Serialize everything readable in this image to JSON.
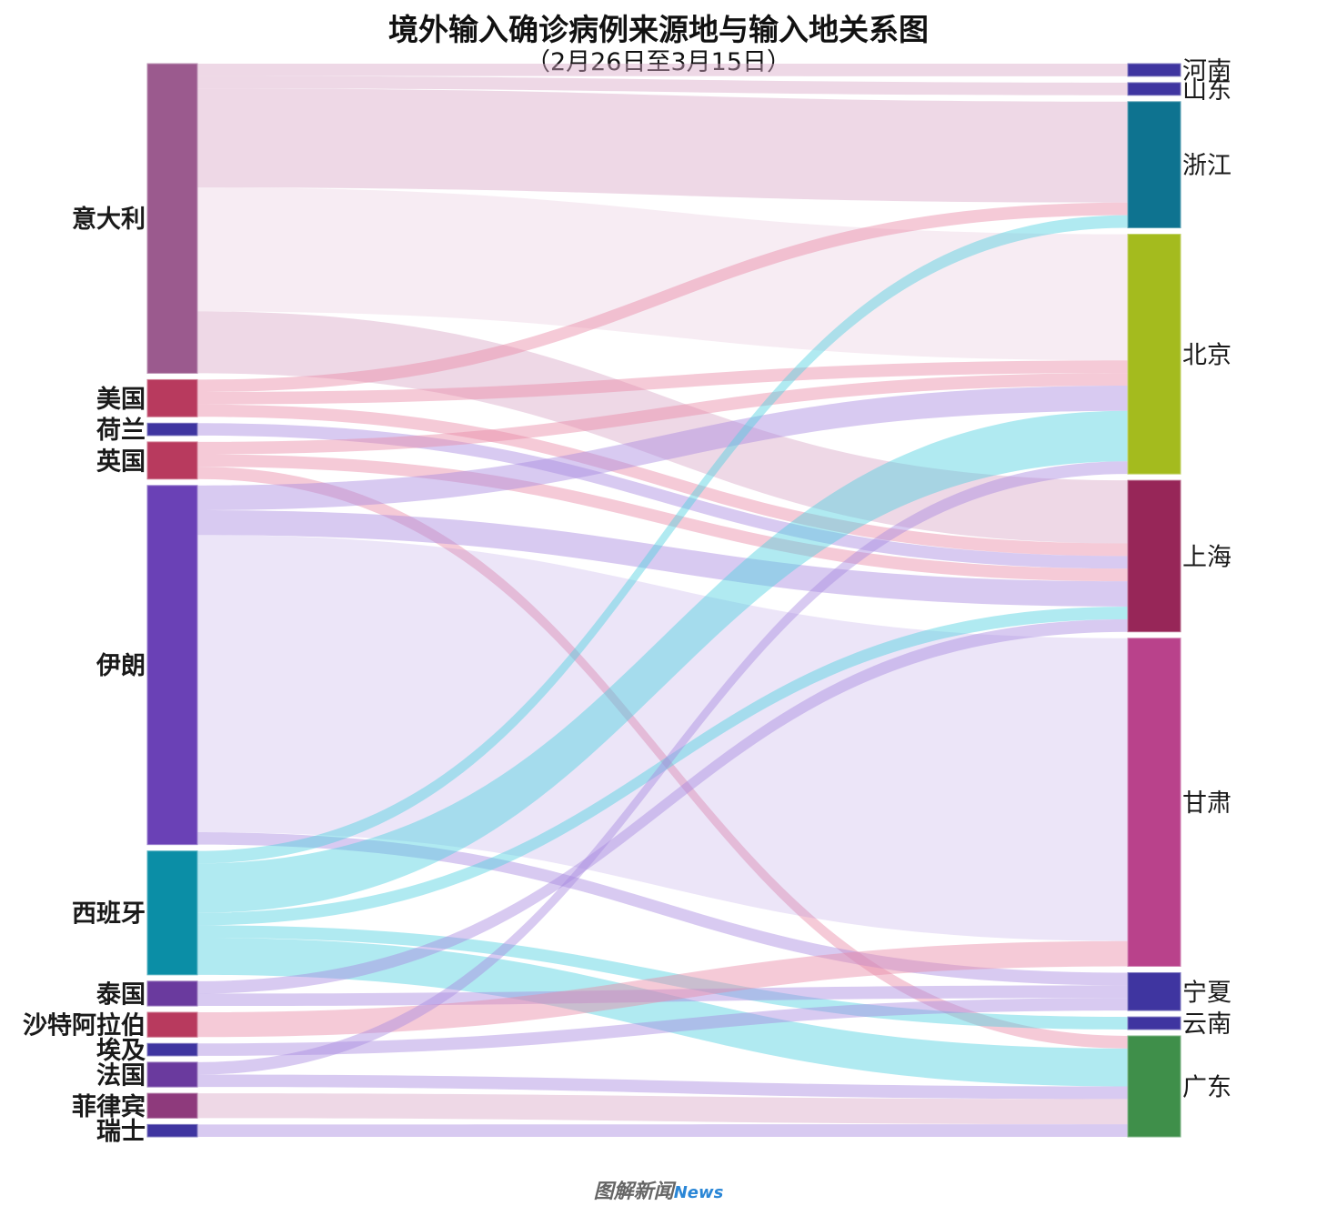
{
  "title": "境外输入确诊病例来源地与输入地关系图",
  "subtitle": "（2月26日至3月15日）",
  "watermark": {
    "cn": "图解新闻",
    "en": "News"
  },
  "chart_data": {
    "type": "sankey",
    "sources": [
      {
        "id": "italy",
        "label": "意大利",
        "color": "#9b5a8e"
      },
      {
        "id": "usa",
        "label": "美国",
        "color": "#b83a5e"
      },
      {
        "id": "netherlands",
        "label": "荷兰",
        "color": "#3f35a0"
      },
      {
        "id": "uk",
        "label": "英国",
        "color": "#b83a5e"
      },
      {
        "id": "iran",
        "label": "伊朗",
        "color": "#6a41b6"
      },
      {
        "id": "spain",
        "label": "西班牙",
        "color": "#0b8ea6"
      },
      {
        "id": "thailand",
        "label": "泰国",
        "color": "#6a3a9e"
      },
      {
        "id": "saudi",
        "label": "沙特阿拉伯",
        "color": "#b83a5e"
      },
      {
        "id": "egypt",
        "label": "埃及",
        "color": "#3f35a0"
      },
      {
        "id": "france",
        "label": "法国",
        "color": "#6a3a9e"
      },
      {
        "id": "philippines",
        "label": "菲律宾",
        "color": "#8e3a7c"
      },
      {
        "id": "switzerland",
        "label": "瑞士",
        "color": "#3f35a0"
      }
    ],
    "targets": [
      {
        "id": "henan",
        "label": "河南",
        "color": "#3f35a0"
      },
      {
        "id": "shandong",
        "label": "山东",
        "color": "#3f35a0"
      },
      {
        "id": "zhejiang",
        "label": "浙江",
        "color": "#0e7390"
      },
      {
        "id": "beijing",
        "label": "北京",
        "color": "#a4bb1e"
      },
      {
        "id": "shanghai",
        "label": "上海",
        "color": "#972658"
      },
      {
        "id": "gansu",
        "label": "甘肃",
        "color": "#b9428b"
      },
      {
        "id": "ningxia",
        "label": "宁夏",
        "color": "#3f35a0"
      },
      {
        "id": "yunnan",
        "label": "云南",
        "color": "#3f35a0"
      },
      {
        "id": "guangdong",
        "label": "广东",
        "color": "#3f8f4a"
      }
    ],
    "flows": [
      {
        "source": "italy",
        "target": "henan",
        "value": 1
      },
      {
        "source": "italy",
        "target": "shandong",
        "value": 1
      },
      {
        "source": "italy",
        "target": "zhejiang",
        "value": 8
      },
      {
        "source": "italy",
        "target": "beijing",
        "value": 10
      },
      {
        "source": "italy",
        "target": "shanghai",
        "value": 5
      },
      {
        "source": "usa",
        "target": "zhejiang",
        "value": 1
      },
      {
        "source": "usa",
        "target": "beijing",
        "value": 1
      },
      {
        "source": "usa",
        "target": "shanghai",
        "value": 1
      },
      {
        "source": "netherlands",
        "target": "shanghai",
        "value": 1
      },
      {
        "source": "uk",
        "target": "beijing",
        "value": 1
      },
      {
        "source": "uk",
        "target": "shanghai",
        "value": 1
      },
      {
        "source": "uk",
        "target": "guangdong",
        "value": 1
      },
      {
        "source": "iran",
        "target": "beijing",
        "value": 2
      },
      {
        "source": "iran",
        "target": "shanghai",
        "value": 2
      },
      {
        "source": "iran",
        "target": "gansu",
        "value": 24
      },
      {
        "source": "iran",
        "target": "ningxia",
        "value": 1
      },
      {
        "source": "spain",
        "target": "zhejiang",
        "value": 1
      },
      {
        "source": "spain",
        "target": "beijing",
        "value": 4
      },
      {
        "source": "spain",
        "target": "shanghai",
        "value": 1
      },
      {
        "source": "spain",
        "target": "yunnan",
        "value": 1
      },
      {
        "source": "spain",
        "target": "guangdong",
        "value": 3
      },
      {
        "source": "thailand",
        "target": "shanghai",
        "value": 1
      },
      {
        "source": "thailand",
        "target": "ningxia",
        "value": 1
      },
      {
        "source": "saudi",
        "target": "gansu",
        "value": 2
      },
      {
        "source": "egypt",
        "target": "ningxia",
        "value": 1
      },
      {
        "source": "france",
        "target": "beijing",
        "value": 1
      },
      {
        "source": "france",
        "target": "guangdong",
        "value": 1
      },
      {
        "source": "philippines",
        "target": "guangdong",
        "value": 2
      },
      {
        "source": "switzerland",
        "target": "guangdong",
        "value": 1
      }
    ]
  }
}
